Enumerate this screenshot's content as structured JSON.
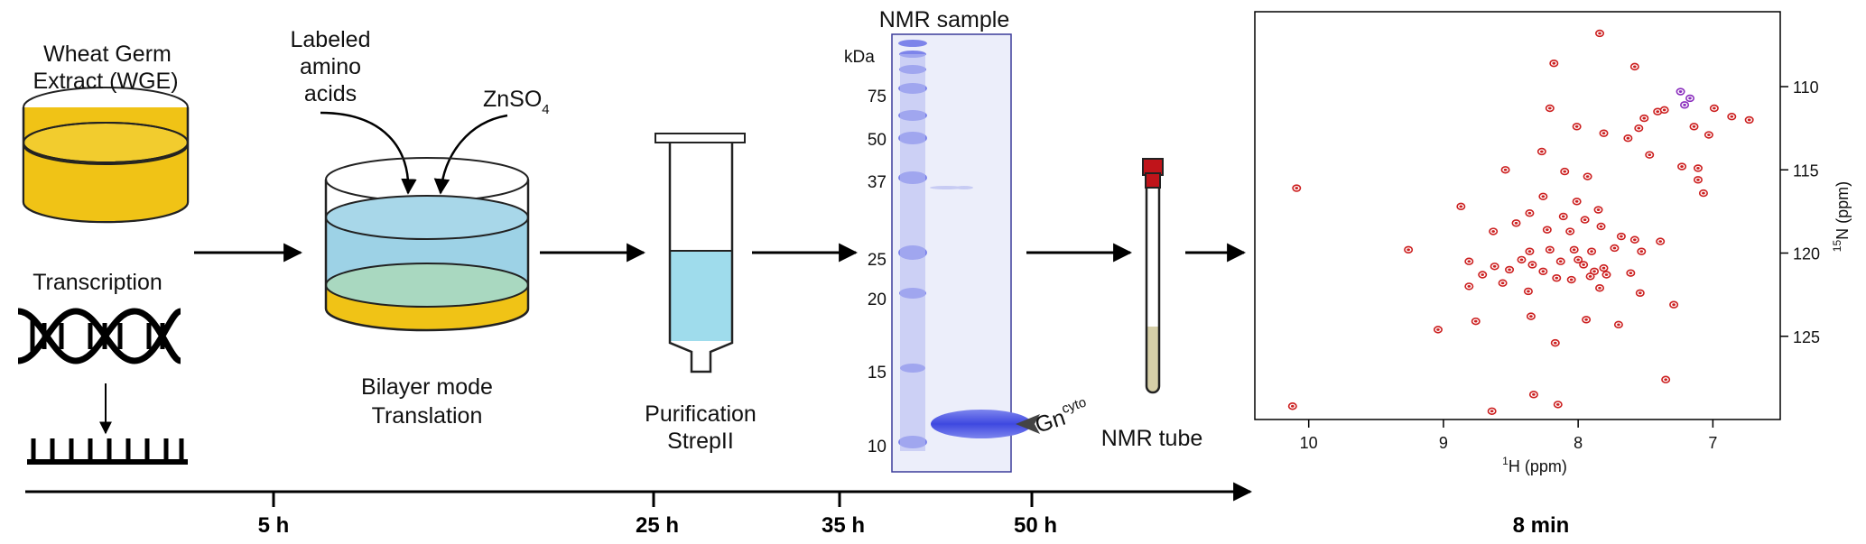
{
  "labels": {
    "wge_line1": "Wheat Germ",
    "wge_line2": "Extract (WGE)",
    "transcription": "Transcription",
    "labeled_line1": "Labeled",
    "labeled_line2": "amino",
    "labeled_line3": "acids",
    "znso4_main": "ZnSO",
    "znso4_sub": "4",
    "bilayer_line1": "Bilayer mode",
    "bilayer_line2": "Translation",
    "purification_line1": "Purification",
    "purification_line2": "StrepII",
    "nmr_sample": "NMR sample",
    "kda": "kDa",
    "protein_main": "Gn",
    "protein_sup": "cyto",
    "nmr_tube": "NMR tube"
  },
  "gel_markers": [
    "75",
    "50",
    "37",
    "25",
    "20",
    "15",
    "10"
  ],
  "timeline": [
    "5 h",
    "25 h",
    "35 h",
    "50 h",
    "8 min"
  ],
  "colors": {
    "extract_yellow": "#f0c316",
    "buffer_blue": "#9dd2e6",
    "mixed_green": "#a9d8c0",
    "column_blue": "#9fdcec",
    "gel_band": "#5a63e6",
    "gel_bg": "#eceefa",
    "peak_red": "#cc1f1f",
    "peak_purple": "#8a2dbd",
    "tube_cap": "#c0141a",
    "tube_sample": "#d6cfa8"
  },
  "chart_data": {
    "type": "scatter",
    "title": "",
    "xlabel_main": "H (ppm)",
    "xlabel_sup": "1",
    "ylabel_main": "N (ppm)",
    "ylabel_sup": "15",
    "x_reversed": true,
    "xlim": [
      10.4,
      6.5
    ],
    "ylim": [
      105.5,
      130.0
    ],
    "x_ticks": [
      "10",
      "9",
      "8",
      "7"
    ],
    "y_ticks": [
      "110",
      "115",
      "120",
      "125"
    ],
    "series": [
      {
        "color": "#cc1f1f",
        "points": [
          [
            7.84,
            106.8
          ],
          [
            8.18,
            108.6
          ],
          [
            7.58,
            108.8
          ],
          [
            6.99,
            111.3
          ],
          [
            6.86,
            111.8
          ],
          [
            6.73,
            112.0
          ],
          [
            7.41,
            111.5
          ],
          [
            7.51,
            111.9
          ],
          [
            7.55,
            112.5
          ],
          [
            7.14,
            112.4
          ],
          [
            7.03,
            112.9
          ],
          [
            8.21,
            111.3
          ],
          [
            8.01,
            112.4
          ],
          [
            8.27,
            113.9
          ],
          [
            7.81,
            112.8
          ],
          [
            7.63,
            113.1
          ],
          [
            7.47,
            114.1
          ],
          [
            7.23,
            114.8
          ],
          [
            7.11,
            115.6
          ],
          [
            7.07,
            116.4
          ],
          [
            10.09,
            116.1
          ],
          [
            8.54,
            115.0
          ],
          [
            8.1,
            115.1
          ],
          [
            7.93,
            115.4
          ],
          [
            8.26,
            116.6
          ],
          [
            8.01,
            116.9
          ],
          [
            7.85,
            117.4
          ],
          [
            8.36,
            117.6
          ],
          [
            8.87,
            117.2
          ],
          [
            8.11,
            117.8
          ],
          [
            7.95,
            118.0
          ],
          [
            7.83,
            118.4
          ],
          [
            8.46,
            118.2
          ],
          [
            8.63,
            118.7
          ],
          [
            8.23,
            118.6
          ],
          [
            8.06,
            118.7
          ],
          [
            7.68,
            119.0
          ],
          [
            7.58,
            119.2
          ],
          [
            7.39,
            119.3
          ],
          [
            9.26,
            119.8
          ],
          [
            8.36,
            119.9
          ],
          [
            8.21,
            119.8
          ],
          [
            8.03,
            119.8
          ],
          [
            7.9,
            119.9
          ],
          [
            7.73,
            119.7
          ],
          [
            7.53,
            119.9
          ],
          [
            8.81,
            120.5
          ],
          [
            8.62,
            120.8
          ],
          [
            8.51,
            121.0
          ],
          [
            8.42,
            120.4
          ],
          [
            8.34,
            120.7
          ],
          [
            8.26,
            121.1
          ],
          [
            8.13,
            120.5
          ],
          [
            8.0,
            120.4
          ],
          [
            7.96,
            120.7
          ],
          [
            7.88,
            121.1
          ],
          [
            7.81,
            120.9
          ],
          [
            8.71,
            121.3
          ],
          [
            8.56,
            121.8
          ],
          [
            8.16,
            121.5
          ],
          [
            8.05,
            121.6
          ],
          [
            7.91,
            121.4
          ],
          [
            7.79,
            121.3
          ],
          [
            7.61,
            121.2
          ],
          [
            8.81,
            122.0
          ],
          [
            8.37,
            122.3
          ],
          [
            7.84,
            122.1
          ],
          [
            7.54,
            122.4
          ],
          [
            7.29,
            123.1
          ],
          [
            8.76,
            124.1
          ],
          [
            8.35,
            123.8
          ],
          [
            7.94,
            124.0
          ],
          [
            7.7,
            124.3
          ],
          [
            9.04,
            124.6
          ],
          [
            8.17,
            125.4
          ],
          [
            7.35,
            127.6
          ],
          [
            8.33,
            128.5
          ],
          [
            8.15,
            129.1
          ],
          [
            10.12,
            129.2
          ],
          [
            8.64,
            129.5
          ],
          [
            7.36,
            111.4
          ],
          [
            7.11,
            114.9
          ]
        ]
      },
      {
        "color": "#8a2dbd",
        "points": [
          [
            7.24,
            110.3
          ],
          [
            7.17,
            110.7
          ],
          [
            7.21,
            111.1
          ]
        ]
      }
    ]
  }
}
